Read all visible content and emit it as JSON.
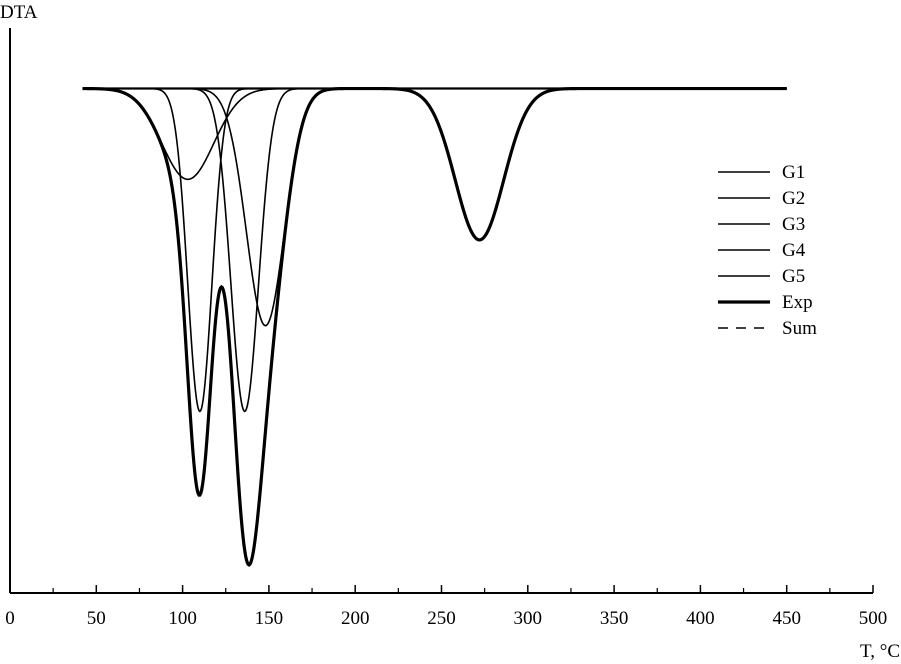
{
  "chart_data": {
    "type": "line",
    "title": "",
    "xlabel": "T, °C",
    "ylabel": "DTA",
    "xlim": [
      0,
      500
    ],
    "ylim": [
      -1.0,
      0.12
    ],
    "x_ticks": [
      0,
      50,
      100,
      150,
      200,
      250,
      300,
      350,
      400,
      450,
      500
    ],
    "x_tick_labels": [
      "0",
      "50",
      "100",
      "150",
      "200",
      "250",
      "300",
      "350",
      "400",
      "450",
      "500"
    ],
    "y_ticks_labeled": false,
    "grid": false,
    "legend_position": "right",
    "baseline": 0,
    "x_range": [
      42,
      450
    ],
    "series": [
      {
        "name": "G1",
        "style": "thin",
        "peak_center": 103,
        "peak_depth": 0.18,
        "peak_width": 15
      },
      {
        "name": "G2",
        "style": "thin",
        "peak_center": 110,
        "peak_depth": 0.64,
        "peak_width": 7
      },
      {
        "name": "G3",
        "style": "thin",
        "peak_center": 136,
        "peak_depth": 0.64,
        "peak_width": 8
      },
      {
        "name": "G4",
        "style": "thin",
        "peak_center": 148,
        "peak_depth": 0.47,
        "peak_width": 11
      },
      {
        "name": "G5",
        "style": "thin",
        "peak_center": 272,
        "peak_depth": 0.3,
        "peak_width": 14
      },
      {
        "name": "Exp",
        "style": "thick"
      },
      {
        "name": "Sum",
        "style": "dashed"
      }
    ]
  }
}
